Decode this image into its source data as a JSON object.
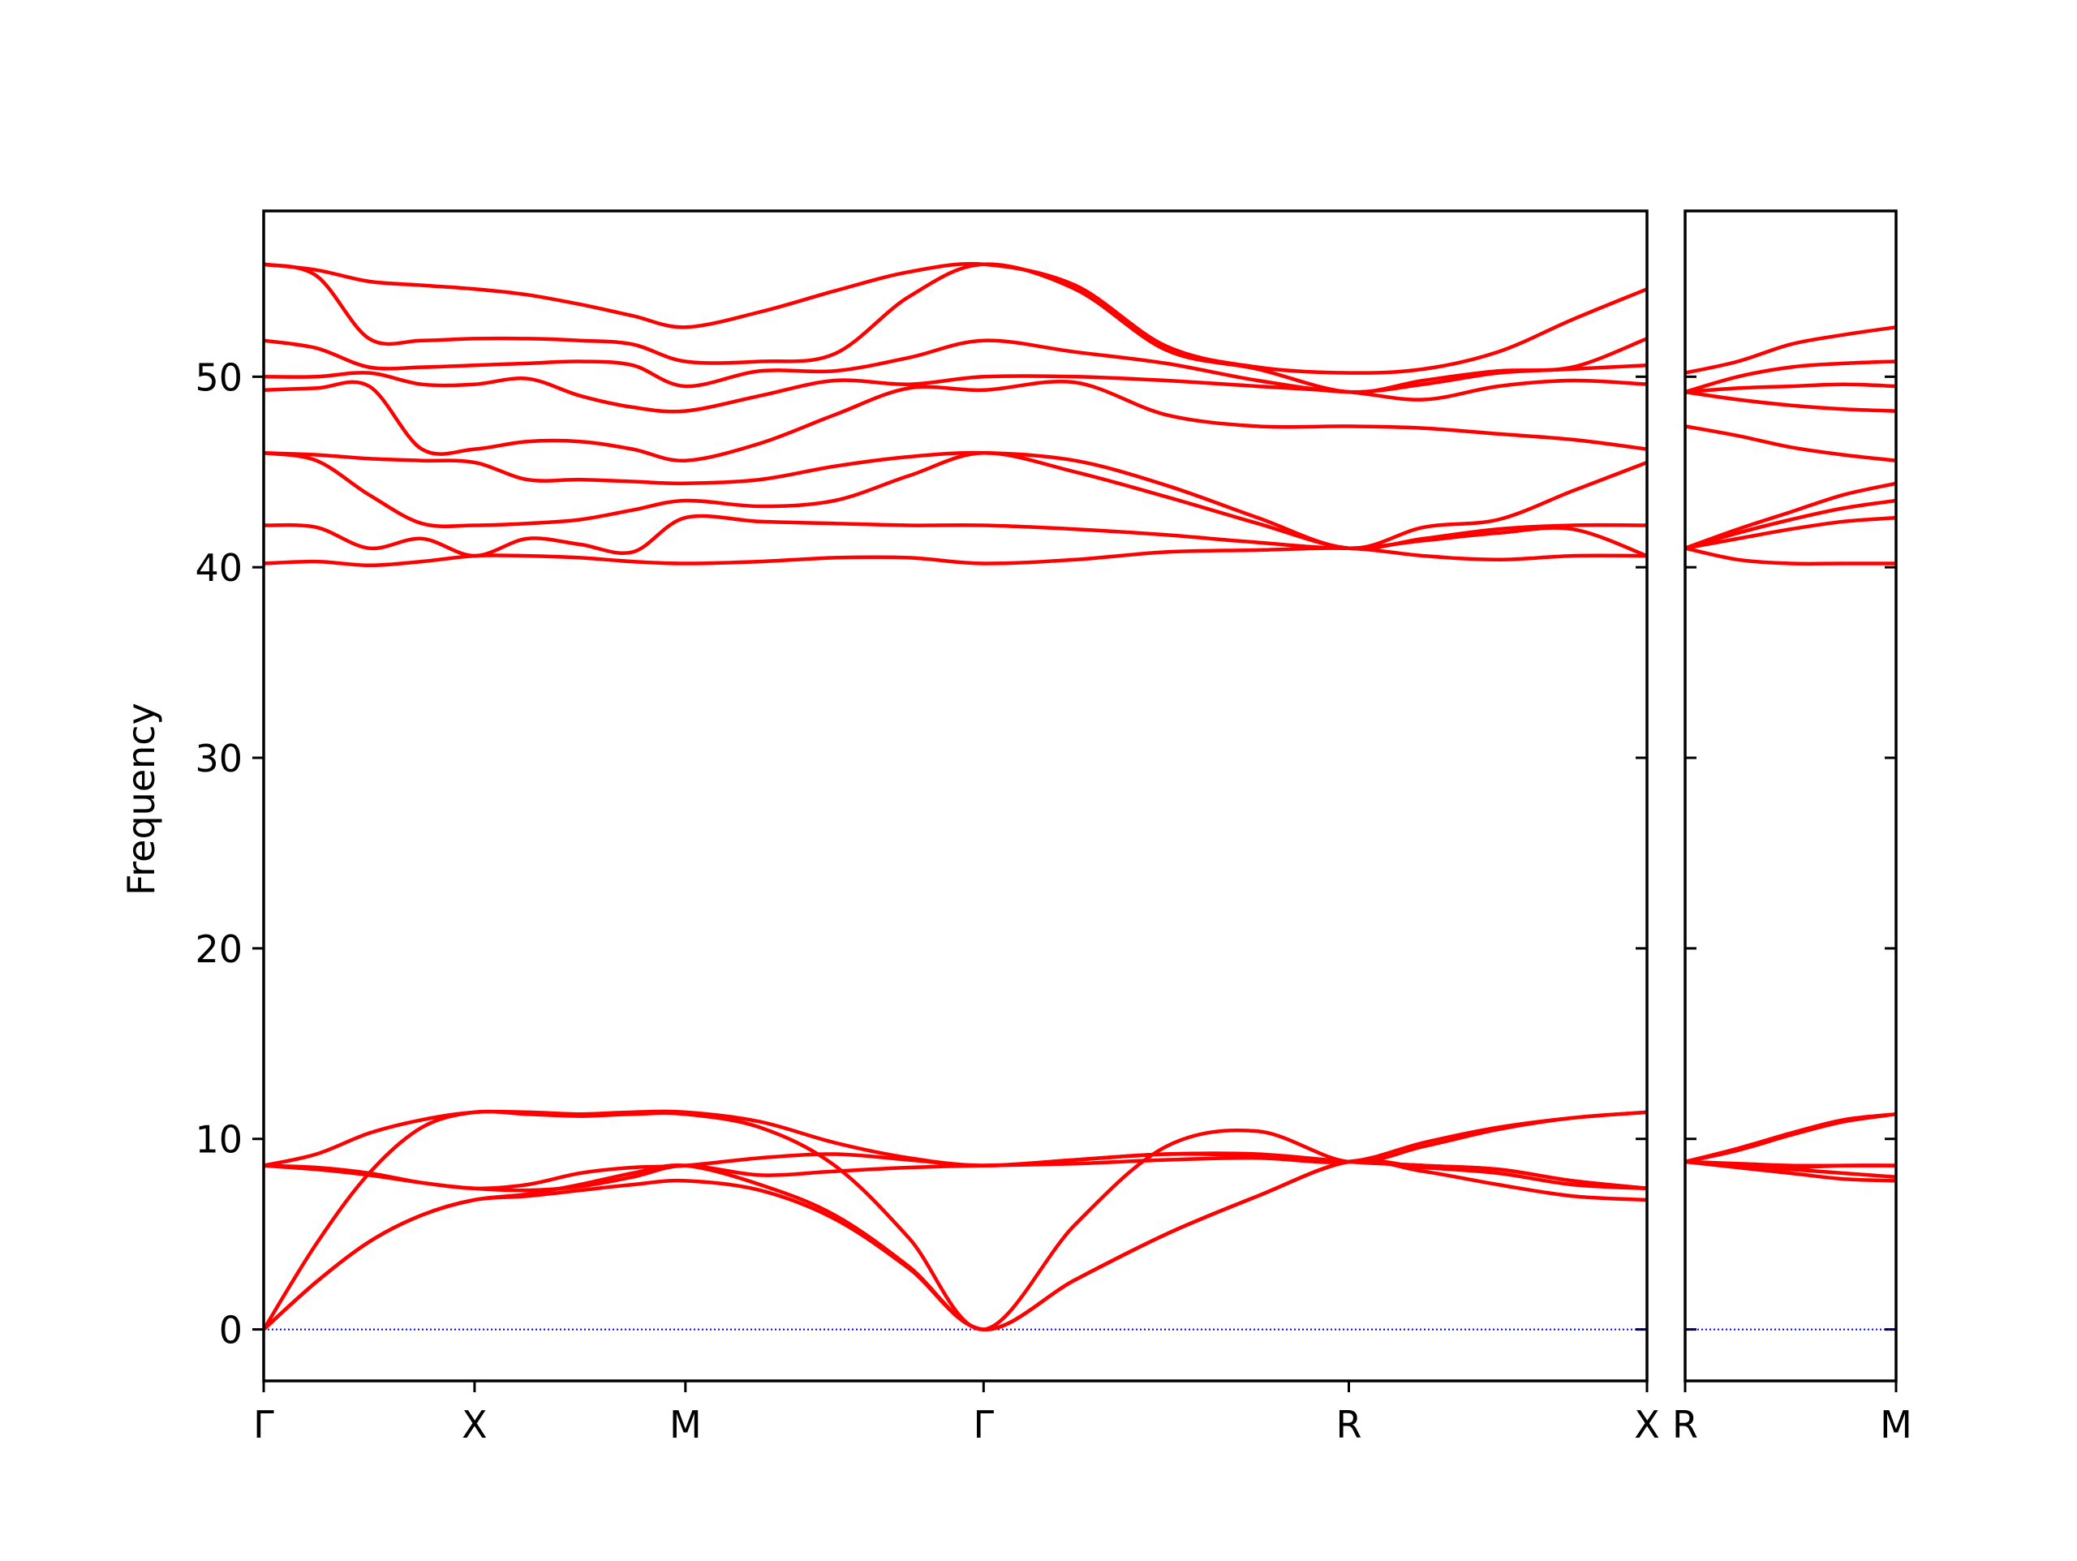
{
  "chart_data": [
    {
      "type": "line",
      "ylabel": "Frequency",
      "color": "#ff0000",
      "ylim": [
        -2.7,
        58.7
      ],
      "yticks": [
        0,
        10,
        20,
        30,
        40,
        50
      ],
      "xlim": [
        0,
        3.28
      ],
      "xticks": [
        {
          "value": 0,
          "label": "Γ"
        },
        {
          "value": 0.5,
          "label": "X"
        },
        {
          "value": 1.0,
          "label": "M"
        },
        {
          "value": 1.707,
          "label": "Γ"
        },
        {
          "value": 2.573,
          "label": "R"
        },
        {
          "value": 3.28,
          "label": "X"
        }
      ],
      "hline": 0,
      "hline_color": "#0000ff",
      "x": [
        0,
        0.125,
        0.25,
        0.375,
        0.5,
        0.625,
        0.75,
        0.875,
        1.0,
        1.177,
        1.354,
        1.53,
        1.707,
        1.924,
        2.14,
        2.357,
        2.573,
        2.75,
        2.927,
        3.103,
        3.28
      ],
      "series": [
        {
          "values": [
            0,
            2.5,
            4.6,
            6.0,
            6.8,
            7.0,
            7.3,
            7.6,
            7.8,
            7.3,
            5.8,
            3.2,
            0,
            2.6,
            5.0,
            7.0,
            8.8,
            8.3,
            7.6,
            7.0,
            6.8
          ]
        },
        {
          "values": [
            0,
            2.5,
            4.6,
            6.0,
            6.8,
            7.1,
            7.6,
            8.2,
            8.6,
            7.6,
            6.0,
            3.3,
            0,
            2.6,
            5.0,
            7.0,
            8.8,
            8.5,
            8.2,
            7.6,
            7.4
          ]
        },
        {
          "values": [
            0,
            4.5,
            8.2,
            10.6,
            11.4,
            11.3,
            11.2,
            11.3,
            11.3,
            10.6,
            8.6,
            4.8,
            0,
            5.5,
            9.6,
            10.4,
            8.8,
            9.6,
            10.5,
            11.1,
            11.4
          ]
        },
        {
          "values": [
            8.6,
            9.2,
            10.3,
            11.0,
            11.4,
            11.4,
            11.3,
            11.4,
            11.4,
            10.9,
            9.8,
            9.0,
            8.6,
            8.9,
            9.2,
            9.1,
            8.8,
            8.6,
            8.4,
            7.8,
            7.4
          ]
        },
        {
          "values": [
            8.6,
            8.4,
            8.1,
            7.7,
            7.4,
            7.6,
            8.2,
            8.5,
            8.6,
            9.0,
            9.2,
            8.9,
            8.6,
            8.9,
            9.2,
            9.2,
            8.8,
            8.6,
            8.4,
            7.8,
            7.4
          ]
        },
        {
          "values": [
            8.6,
            8.5,
            8.2,
            7.7,
            7.4,
            7.3,
            7.5,
            8.0,
            8.6,
            8.1,
            8.3,
            8.5,
            8.6,
            8.7,
            8.9,
            9.0,
            8.8,
            9.8,
            10.6,
            11.1,
            11.4
          ]
        },
        {
          "values": [
            40.2,
            40.3,
            40.1,
            40.3,
            40.6,
            40.6,
            40.5,
            40.3,
            40.2,
            40.3,
            40.5,
            40.5,
            40.2,
            40.4,
            40.8,
            40.9,
            41.0,
            40.6,
            40.4,
            40.6,
            40.6
          ]
        },
        {
          "values": [
            42.2,
            42.1,
            41.0,
            41.5,
            40.6,
            41.5,
            41.2,
            40.8,
            42.6,
            42.4,
            42.3,
            42.2,
            42.2,
            42.0,
            41.7,
            41.3,
            41.0,
            41.4,
            41.8,
            42.0,
            40.6
          ]
        },
        {
          "values": [
            46.0,
            45.6,
            43.8,
            42.3,
            42.2,
            42.3,
            42.5,
            43.0,
            43.5,
            43.2,
            43.5,
            44.8,
            46.0,
            45.0,
            43.7,
            42.3,
            41.0,
            41.5,
            42.0,
            42.2,
            42.2
          ]
        },
        {
          "values": [
            46.0,
            45.9,
            45.7,
            45.6,
            45.5,
            44.6,
            44.6,
            44.5,
            44.4,
            44.6,
            45.3,
            45.8,
            46.0,
            45.6,
            44.3,
            42.6,
            41.0,
            42.1,
            42.5,
            44.0,
            45.5
          ]
        },
        {
          "values": [
            49.3,
            49.4,
            49.5,
            46.2,
            46.2,
            46.6,
            46.6,
            46.2,
            45.6,
            46.5,
            48.0,
            49.4,
            49.3,
            49.7,
            48.0,
            47.4,
            47.4,
            47.3,
            47.0,
            46.7,
            46.2
          ]
        },
        {
          "values": [
            50.0,
            50.0,
            50.2,
            49.6,
            49.6,
            49.9,
            49.0,
            48.4,
            48.2,
            49.0,
            49.8,
            49.6,
            50.0,
            50.0,
            49.8,
            49.5,
            49.2,
            48.8,
            49.5,
            49.8,
            49.6
          ]
        },
        {
          "values": [
            51.9,
            51.5,
            50.5,
            50.5,
            50.6,
            50.7,
            50.8,
            50.6,
            49.5,
            50.3,
            50.3,
            51.0,
            51.9,
            51.3,
            50.7,
            49.8,
            49.2,
            49.6,
            50.2,
            50.4,
            50.6
          ]
        },
        {
          "values": [
            55.9,
            55.3,
            52.0,
            51.9,
            52.0,
            52.0,
            51.9,
            51.7,
            50.8,
            50.8,
            51.2,
            54.2,
            55.9,
            54.6,
            51.4,
            50.4,
            49.2,
            49.8,
            50.3,
            50.5,
            52.0
          ]
        },
        {
          "values": [
            55.9,
            55.6,
            55.0,
            54.8,
            54.6,
            54.3,
            53.8,
            53.2,
            52.6,
            53.4,
            54.5,
            55.5,
            55.9,
            54.8,
            51.6,
            50.5,
            50.2,
            50.4,
            51.3,
            53.0,
            54.6
          ]
        }
      ]
    },
    {
      "type": "line",
      "color": "#ff0000",
      "ylim": [
        -2.7,
        58.7
      ],
      "xlim": [
        0,
        0.5
      ],
      "xticks": [
        {
          "value": 0,
          "label": "R"
        },
        {
          "value": 0.5,
          "label": "M"
        }
      ],
      "hline": 0,
      "hline_color": "#0000ff",
      "x": [
        0,
        0.125,
        0.25,
        0.375,
        0.5
      ],
      "series": [
        {
          "values": [
            8.8,
            8.5,
            8.2,
            7.9,
            7.8
          ]
        },
        {
          "values": [
            8.8,
            8.6,
            8.5,
            8.6,
            8.6
          ]
        },
        {
          "values": [
            8.8,
            9.5,
            10.3,
            11.0,
            11.3
          ]
        },
        {
          "values": [
            8.8,
            9.4,
            10.2,
            10.9,
            11.3
          ]
        },
        {
          "values": [
            8.8,
            8.7,
            8.6,
            8.6,
            8.6
          ]
        },
        {
          "values": [
            8.8,
            8.6,
            8.4,
            8.2,
            8.0
          ]
        },
        {
          "values": [
            41.0,
            40.4,
            40.2,
            40.2,
            40.2
          ]
        },
        {
          "values": [
            41.0,
            41.5,
            42.0,
            42.4,
            42.6
          ]
        },
        {
          "values": [
            41.0,
            41.8,
            42.5,
            43.1,
            43.5
          ]
        },
        {
          "values": [
            41.0,
            42.0,
            42.9,
            43.8,
            44.4
          ]
        },
        {
          "values": [
            47.4,
            46.9,
            46.3,
            45.9,
            45.6
          ]
        },
        {
          "values": [
            49.2,
            48.8,
            48.5,
            48.3,
            48.2
          ]
        },
        {
          "values": [
            49.2,
            49.4,
            49.5,
            49.6,
            49.5
          ]
        },
        {
          "values": [
            49.2,
            50.0,
            50.5,
            50.7,
            50.8
          ]
        },
        {
          "values": [
            50.2,
            50.8,
            51.7,
            52.2,
            52.6
          ]
        }
      ]
    }
  ]
}
